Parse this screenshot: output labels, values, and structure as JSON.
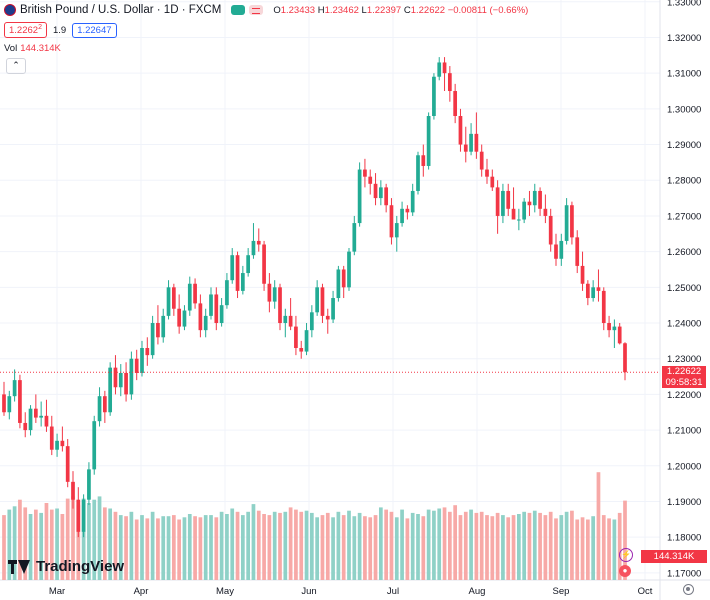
{
  "header": {
    "symbol_title": "British Pound / U.S. Dollar · 1D · FXCM",
    "ohlc": {
      "open_label": "O",
      "open": "1.23433",
      "high_label": "H",
      "high": "1.23462",
      "low_label": "L",
      "low": "1.22397",
      "close_label": "C",
      "close": "1.22622",
      "change": "−0.00811 (−0.66%)"
    },
    "bid": "1.2262",
    "bid_sup": "2",
    "spread": "1.9",
    "ask": "1.22647",
    "volume_label": "Vol",
    "volume_value": "144.314K",
    "collapse_icon": "chevron-up-icon"
  },
  "price_tag": {
    "price": "1.22622",
    "countdown": "09:58:31"
  },
  "volume_tag": "144.314K",
  "branding": {
    "logo_text": "TradingView"
  },
  "colors": {
    "up": "#22ab94",
    "down": "#f23645",
    "vol_up": "#8fd1c7",
    "vol_down": "#f7a9a7",
    "grid": "#f0f3fa",
    "axis_text": "#131722"
  },
  "chart_data": {
    "type": "candlestick",
    "timeframe": "1D",
    "y_axis_ticks": [
      "1.17000",
      "1.18000",
      "1.19000",
      "1.20000",
      "1.21000",
      "1.22000",
      "1.23000",
      "1.24000",
      "1.25000",
      "1.26000",
      "1.27000",
      "1.28000",
      "1.29000",
      "1.30000",
      "1.31000",
      "1.32000",
      "1.33000"
    ],
    "ylim": [
      1.168,
      1.3305
    ],
    "x_axis_ticks": [
      "Mar",
      "Apr",
      "May",
      "Jun",
      "Jul",
      "Aug",
      "Sep",
      "Oct"
    ],
    "volume_ylim": [
      0,
      200000
    ],
    "last_close": 1.22622,
    "last_volume": 144314,
    "candles": [
      [
        1.22,
        1.2235,
        1.214,
        1.215,
        118000
      ],
      [
        1.215,
        1.221,
        1.213,
        1.2195,
        128000
      ],
      [
        1.2195,
        1.227,
        1.218,
        1.224,
        134000
      ],
      [
        1.224,
        1.2255,
        1.2105,
        1.212,
        146000
      ],
      [
        1.212,
        1.215,
        1.208,
        1.21,
        132000
      ],
      [
        1.21,
        1.217,
        1.2085,
        1.216,
        120000
      ],
      [
        1.216,
        1.22,
        1.212,
        1.2135,
        128000
      ],
      [
        1.2135,
        1.218,
        1.211,
        1.214,
        122000
      ],
      [
        1.214,
        1.2185,
        1.2095,
        1.211,
        140000
      ],
      [
        1.211,
        1.214,
        1.203,
        1.2045,
        128000
      ],
      [
        1.2045,
        1.209,
        1.2025,
        1.207,
        130000
      ],
      [
        1.207,
        1.211,
        1.204,
        1.2055,
        120000
      ],
      [
        1.2055,
        1.2075,
        1.194,
        1.1955,
        148000
      ],
      [
        1.1955,
        1.1985,
        1.188,
        1.1905,
        152000
      ],
      [
        1.1905,
        1.194,
        1.18,
        1.1815,
        136000
      ],
      [
        1.1815,
        1.192,
        1.18,
        1.1905,
        148000
      ],
      [
        1.1905,
        1.201,
        1.189,
        1.199,
        140000
      ],
      [
        1.199,
        1.214,
        1.1975,
        1.2125,
        146000
      ],
      [
        1.2125,
        1.222,
        1.211,
        1.2195,
        152000
      ],
      [
        1.2195,
        1.221,
        1.212,
        1.215,
        132000
      ],
      [
        1.215,
        1.229,
        1.214,
        1.2275,
        130000
      ],
      [
        1.2275,
        1.231,
        1.22,
        1.222,
        124000
      ],
      [
        1.222,
        1.2285,
        1.2195,
        1.226,
        118000
      ],
      [
        1.226,
        1.229,
        1.218,
        1.22,
        116000
      ],
      [
        1.22,
        1.232,
        1.2185,
        1.23,
        124000
      ],
      [
        1.23,
        1.2325,
        1.224,
        1.226,
        110000
      ],
      [
        1.226,
        1.235,
        1.225,
        1.233,
        118000
      ],
      [
        1.233,
        1.236,
        1.228,
        1.231,
        112000
      ],
      [
        1.231,
        1.242,
        1.23,
        1.24,
        124000
      ],
      [
        1.24,
        1.245,
        1.234,
        1.236,
        112000
      ],
      [
        1.236,
        1.244,
        1.2345,
        1.242,
        116000
      ],
      [
        1.242,
        1.252,
        1.241,
        1.25,
        116000
      ],
      [
        1.25,
        1.251,
        1.242,
        1.244,
        118000
      ],
      [
        1.244,
        1.248,
        1.237,
        1.239,
        110000
      ],
      [
        1.239,
        1.245,
        1.238,
        1.2435,
        114000
      ],
      [
        1.2435,
        1.253,
        1.242,
        1.251,
        120000
      ],
      [
        1.251,
        1.2525,
        1.244,
        1.2455,
        116000
      ],
      [
        1.2455,
        1.248,
        1.236,
        1.238,
        114000
      ],
      [
        1.238,
        1.244,
        1.236,
        1.242,
        118000
      ],
      [
        1.242,
        1.25,
        1.241,
        1.248,
        118000
      ],
      [
        1.248,
        1.25,
        1.238,
        1.24,
        114000
      ],
      [
        1.24,
        1.247,
        1.239,
        1.245,
        124000
      ],
      [
        1.245,
        1.254,
        1.244,
        1.252,
        120000
      ],
      [
        1.252,
        1.261,
        1.251,
        1.259,
        130000
      ],
      [
        1.259,
        1.26,
        1.247,
        1.249,
        124000
      ],
      [
        1.249,
        1.256,
        1.248,
        1.254,
        118000
      ],
      [
        1.254,
        1.261,
        1.253,
        1.259,
        124000
      ],
      [
        1.259,
        1.268,
        1.258,
        1.263,
        138000
      ],
      [
        1.263,
        1.2665,
        1.26,
        1.262,
        126000
      ],
      [
        1.262,
        1.263,
        1.249,
        1.251,
        120000
      ],
      [
        1.251,
        1.254,
        1.243,
        1.246,
        118000
      ],
      [
        1.246,
        1.252,
        1.244,
        1.25,
        124000
      ],
      [
        1.25,
        1.251,
        1.238,
        1.24,
        122000
      ],
      [
        1.24,
        1.244,
        1.236,
        1.242,
        124000
      ],
      [
        1.242,
        1.247,
        1.238,
        1.239,
        132000
      ],
      [
        1.239,
        1.242,
        1.231,
        1.233,
        128000
      ],
      [
        1.233,
        1.235,
        1.23,
        1.232,
        124000
      ],
      [
        1.232,
        1.24,
        1.231,
        1.238,
        126000
      ],
      [
        1.238,
        1.245,
        1.236,
        1.243,
        122000
      ],
      [
        1.243,
        1.252,
        1.242,
        1.25,
        114000
      ],
      [
        1.25,
        1.251,
        1.24,
        1.242,
        118000
      ],
      [
        1.242,
        1.244,
        1.237,
        1.241,
        122000
      ],
      [
        1.241,
        1.249,
        1.24,
        1.247,
        114000
      ],
      [
        1.247,
        1.256,
        1.246,
        1.255,
        124000
      ],
      [
        1.255,
        1.256,
        1.247,
        1.25,
        118000
      ],
      [
        1.25,
        1.261,
        1.249,
        1.26,
        126000
      ],
      [
        1.26,
        1.27,
        1.259,
        1.268,
        116000
      ],
      [
        1.268,
        1.285,
        1.267,
        1.283,
        122000
      ],
      [
        1.283,
        1.286,
        1.278,
        1.281,
        116000
      ],
      [
        1.281,
        1.283,
        1.276,
        1.279,
        114000
      ],
      [
        1.279,
        1.282,
        1.273,
        1.275,
        118000
      ],
      [
        1.275,
        1.28,
        1.273,
        1.278,
        132000
      ],
      [
        1.278,
        1.279,
        1.271,
        1.273,
        128000
      ],
      [
        1.273,
        1.275,
        1.262,
        1.264,
        124000
      ],
      [
        1.264,
        1.27,
        1.26,
        1.268,
        114000
      ],
      [
        1.268,
        1.274,
        1.267,
        1.272,
        128000
      ],
      [
        1.272,
        1.273,
        1.269,
        1.271,
        112000
      ],
      [
        1.271,
        1.279,
        1.27,
        1.277,
        122000
      ],
      [
        1.277,
        1.288,
        1.276,
        1.287,
        120000
      ],
      [
        1.287,
        1.29,
        1.281,
        1.284,
        116000
      ],
      [
        1.284,
        1.299,
        1.283,
        1.298,
        128000
      ],
      [
        1.298,
        1.31,
        1.297,
        1.309,
        126000
      ],
      [
        1.309,
        1.3145,
        1.308,
        1.313,
        130000
      ],
      [
        1.313,
        1.3145,
        1.305,
        1.31,
        132000
      ],
      [
        1.31,
        1.312,
        1.302,
        1.305,
        124000
      ],
      [
        1.305,
        1.307,
        1.296,
        1.298,
        136000
      ],
      [
        1.298,
        1.3,
        1.288,
        1.29,
        118000
      ],
      [
        1.29,
        1.295,
        1.285,
        1.288,
        124000
      ],
      [
        1.288,
        1.296,
        1.287,
        1.293,
        128000
      ],
      [
        1.293,
        1.299,
        1.286,
        1.288,
        122000
      ],
      [
        1.288,
        1.29,
        1.281,
        1.283,
        124000
      ],
      [
        1.283,
        1.286,
        1.279,
        1.281,
        118000
      ],
      [
        1.281,
        1.283,
        1.277,
        1.278,
        116000
      ],
      [
        1.278,
        1.28,
        1.265,
        1.27,
        122000
      ],
      [
        1.27,
        1.279,
        1.268,
        1.277,
        118000
      ],
      [
        1.277,
        1.279,
        1.27,
        1.272,
        114000
      ],
      [
        1.272,
        1.278,
        1.269,
        1.269,
        118000
      ],
      [
        1.269,
        1.272,
        1.266,
        1.269,
        120000
      ],
      [
        1.269,
        1.275,
        1.268,
        1.274,
        124000
      ],
      [
        1.274,
        1.277,
        1.27,
        1.273,
        122000
      ],
      [
        1.273,
        1.279,
        1.271,
        1.277,
        126000
      ],
      [
        1.277,
        1.278,
        1.27,
        1.272,
        122000
      ],
      [
        1.272,
        1.276,
        1.268,
        1.27,
        118000
      ],
      [
        1.27,
        1.272,
        1.26,
        1.262,
        124000
      ],
      [
        1.262,
        1.265,
        1.256,
        1.258,
        112000
      ],
      [
        1.258,
        1.265,
        1.256,
        1.263,
        118000
      ],
      [
        1.263,
        1.275,
        1.262,
        1.273,
        124000
      ],
      [
        1.273,
        1.274,
        1.262,
        1.264,
        126000
      ],
      [
        1.264,
        1.266,
        1.254,
        1.256,
        110000
      ],
      [
        1.256,
        1.26,
        1.249,
        1.251,
        114000
      ],
      [
        1.251,
        1.252,
        1.245,
        1.247,
        110000
      ],
      [
        1.247,
        1.252,
        1.246,
        1.25,
        116000
      ],
      [
        1.25,
        1.255,
        1.246,
        1.249,
        196000
      ],
      [
        1.249,
        1.25,
        1.238,
        1.24,
        118000
      ],
      [
        1.24,
        1.242,
        1.236,
        1.238,
        112000
      ],
      [
        1.238,
        1.241,
        1.233,
        1.239,
        110000
      ],
      [
        1.239,
        1.24,
        1.234,
        1.2343,
        122000
      ],
      [
        1.23433,
        1.23462,
        1.22397,
        1.22622,
        144314
      ]
    ]
  }
}
